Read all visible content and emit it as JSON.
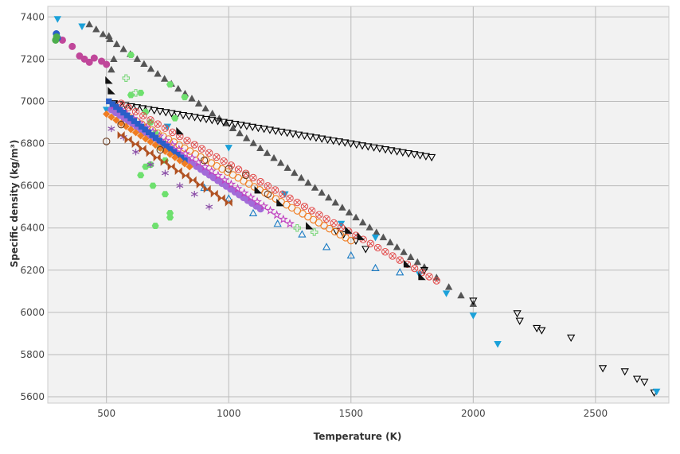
{
  "chart_data": {
    "type": "scatter",
    "title": "",
    "xlabel": "Temperature (K)",
    "ylabel": "Specific density (kg/m³)",
    "xlim": [
      260,
      2800
    ],
    "ylim": [
      5570,
      7450
    ],
    "xticks": [
      500,
      1000,
      1500,
      2000,
      2500
    ],
    "yticks": [
      5600,
      5800,
      6000,
      6200,
      6400,
      6600,
      6800,
      7000,
      7200,
      7400
    ],
    "grid": true,
    "plot_background": "#f2f2f2",
    "grid_color": "#bbbbbb",
    "series": [
      {
        "marker": "triangle-up",
        "color": "#555555",
        "x": [
          430,
          1800
        ],
        "y": [
          7365,
          6215
        ],
        "n": 50,
        "extra_x": [
          1850,
          1900,
          1950,
          2000
        ],
        "extra_y": [
          6165,
          6120,
          6080,
          6040
        ]
      },
      {
        "marker": "triangle-down",
        "color": "#000000",
        "fill": "none",
        "x": [
          530,
          1830
        ],
        "y": [
          6990,
          6735
        ],
        "n": 56,
        "extra_x": [
          1440,
          1470,
          1520,
          1560,
          1800,
          2000,
          2180,
          2190,
          2260,
          2280,
          2400,
          2530,
          2620,
          2670,
          2700,
          2740
        ],
        "extra_y": [
          6385,
          6370,
          6340,
          6300,
          6200,
          6055,
          5995,
          5960,
          5925,
          5915,
          5880,
          5735,
          5720,
          5685,
          5670,
          5620
        ]
      },
      {
        "marker": "triangle-down",
        "color": "#1ba1d9",
        "x": [
          300,
          400,
          500,
          750,
          1000,
          1230,
          1460,
          1600,
          1780,
          1890,
          2000,
          2100,
          2750
        ],
        "y": [
          7390,
          7355,
          6960,
          6880,
          6780,
          6560,
          6420,
          6355,
          6180,
          6090,
          5985,
          5850,
          5625
        ]
      },
      {
        "marker": "circle",
        "color": "#c0479a",
        "x": [
          320,
          360,
          390,
          410,
          430,
          450,
          480,
          500
        ],
        "y": [
          7290,
          7260,
          7215,
          7200,
          7185,
          7205,
          7190,
          7175
        ]
      },
      {
        "marker": "hexagon",
        "color": "#6ee06e",
        "x": [
          600,
          640,
          660,
          680,
          700,
          720,
          740,
          760,
          780,
          820,
          760,
          740,
          700,
          690,
          660,
          640,
          600,
          760,
          680
        ],
        "y": [
          7220,
          7040,
          6950,
          6900,
          6850,
          6780,
          6720,
          7080,
          6920,
          7020,
          6450,
          6560,
          6410,
          6600,
          6690,
          6650,
          7030,
          6470,
          6700
        ]
      },
      {
        "marker": "x-circle",
        "color": "#e24a4a",
        "x": [
          560,
          1850
        ],
        "y": [
          6990,
          6150
        ],
        "n": 44
      },
      {
        "marker": "circle",
        "color": "#f07d22",
        "fill": "none",
        "x": [
          600,
          1500
        ],
        "y": [
          6920,
          6340
        ],
        "n": 42
      },
      {
        "marker": "circle",
        "color": "#a26bd8",
        "x": [
          520,
          1130
        ],
        "y": [
          6960,
          6490
        ],
        "n": 36
      },
      {
        "marker": "triangle-up",
        "color": "#1a7bc4",
        "fill": "none",
        "x": [
          900,
          1000,
          1100,
          1200,
          1300,
          1400,
          1500,
          1600,
          1700
        ],
        "y": [
          6590,
          6540,
          6470,
          6420,
          6370,
          6310,
          6270,
          6210,
          6190
        ]
      },
      {
        "marker": "star",
        "color": "#c040c0",
        "fill": "none",
        "x": [
          530,
          1250
        ],
        "y": [
          6980,
          6420
        ],
        "n": 28
      },
      {
        "marker": "asterisk",
        "color": "#8b4fa8",
        "x": [
          520,
          570,
          620,
          680,
          740,
          800,
          860,
          920
        ],
        "y": [
          6870,
          6830,
          6760,
          6700,
          6660,
          6600,
          6560,
          6500
        ]
      },
      {
        "marker": "square",
        "color": "#2a5fc8",
        "x": [
          510,
          820
        ],
        "y": [
          7000,
          6720
        ],
        "n": 22
      },
      {
        "marker": "diamond",
        "color": "#f07d22",
        "x": [
          500,
          840
        ],
        "y": [
          6940,
          6690
        ],
        "n": 18
      },
      {
        "marker": "bowtie",
        "color": "#b05020",
        "x": [
          560,
          1000
        ],
        "y": [
          6840,
          6520
        ],
        "n": 16
      },
      {
        "marker": "circle",
        "color": "#6b3b1e",
        "fill": "none",
        "x": [
          500,
          560,
          720,
          900,
          1000,
          1070,
          1160
        ],
        "y": [
          6810,
          6890,
          6770,
          6720,
          6680,
          6650,
          6560
        ]
      },
      {
        "marker": "cross",
        "color": "#7ed77e",
        "fill": "none",
        "x": [
          580,
          620,
          1280,
          1350
        ],
        "y": [
          7110,
          7040,
          6400,
          6380
        ]
      },
      {
        "marker": "triangle-right",
        "color": "#111111",
        "x": [
          510,
          520,
          800,
          1120,
          1210,
          1330,
          1490,
          1540,
          1730,
          1790
        ],
        "y": [
          7100,
          7050,
          6860,
          6580,
          6520,
          6410,
          6390,
          6360,
          6230,
          6170
        ]
      },
      {
        "marker": "triangle-up",
        "color": "#555555",
        "x": [
          510,
          520,
          530
        ],
        "y": [
          7310,
          7150,
          7200
        ]
      },
      {
        "marker": "circle",
        "color": "#2a5fc8",
        "x": [
          295,
          300
        ],
        "y": [
          7320,
          7300
        ]
      },
      {
        "marker": "circle",
        "color": "#4cae4c",
        "x": [
          292,
          296
        ],
        "y": [
          7290,
          7305
        ]
      }
    ]
  }
}
